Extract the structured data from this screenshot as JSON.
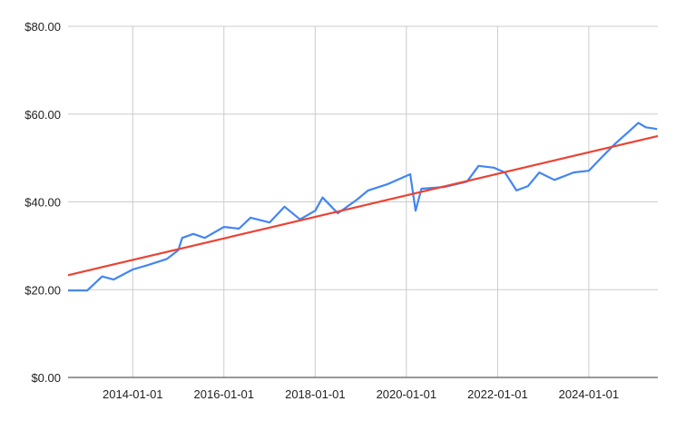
{
  "chart_data": {
    "type": "line",
    "title": "",
    "xlabel": "",
    "ylabel": "",
    "xlim": [
      "2012-08-01",
      "2025-07-07"
    ],
    "ylim": [
      0,
      80
    ],
    "grid": true,
    "legend": "none",
    "y_ticks": [
      0,
      20,
      40,
      60,
      80
    ],
    "y_tick_labels": [
      "$0.00",
      "$20.00",
      "$40.00",
      "$60.00",
      "$80.00"
    ],
    "x_ticks": [
      "2014-01-01",
      "2016-01-01",
      "2018-01-01",
      "2020-01-01",
      "2022-01-01",
      "2024-01-01"
    ],
    "x_tick_labels": [
      "2014-01-01",
      "2016-01-01",
      "2018-01-01",
      "2020-01-01",
      "2022-01-01",
      "2024-01-01"
    ],
    "series": [
      {
        "color": "#4285F4",
        "x": [
          "2012-08-01",
          "2013-01-01",
          "2013-05-01",
          "2013-08-01",
          "2014-01-01",
          "2014-05-01",
          "2014-10-01",
          "2015-01-01",
          "2015-02-01",
          "2015-05-01",
          "2015-08-01",
          "2016-01-01",
          "2016-05-01",
          "2016-08-01",
          "2017-01-01",
          "2017-05-01",
          "2017-09-01",
          "2018-01-01",
          "2018-03-01",
          "2018-07-01",
          "2018-12-01",
          "2019-03-01",
          "2019-08-01",
          "2020-02-01",
          "2020-03-15",
          "2020-05-01",
          "2020-11-01",
          "2021-05-01",
          "2021-08-01",
          "2021-12-01",
          "2022-03-01",
          "2022-06-01",
          "2022-09-01",
          "2022-12-01",
          "2023-04-01",
          "2023-09-01",
          "2024-01-01",
          "2024-04-01",
          "2024-08-01",
          "2024-12-01",
          "2025-02-01",
          "2025-04-01",
          "2025-07-01"
        ],
        "values": [
          19.8,
          19.8,
          23.0,
          22.3,
          24.6,
          25.6,
          27.0,
          29.0,
          31.8,
          32.7,
          31.8,
          34.3,
          33.9,
          36.4,
          35.3,
          38.9,
          36.0,
          38.0,
          41.0,
          37.4,
          40.5,
          42.6,
          44.0,
          46.3,
          38.0,
          43.0,
          43.4,
          44.6,
          48.2,
          47.8,
          46.7,
          42.6,
          43.6,
          46.7,
          45.0,
          46.7,
          47.1,
          49.8,
          53.3,
          56.4,
          58.0,
          57.0,
          56.6
        ]
      },
      {
        "color": "#EA4335",
        "x": [
          "2012-08-01",
          "2025-07-07"
        ],
        "values": [
          23.3,
          55.0
        ]
      }
    ]
  }
}
